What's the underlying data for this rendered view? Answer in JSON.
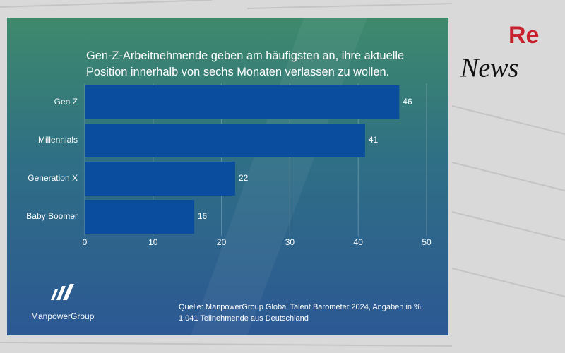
{
  "chart_data": {
    "type": "hbar",
    "title": "Gen-Z-Arbeitnehmende geben am häufigsten an, ihre aktuelle Position innerhalb von sechs Monaten verlassen zu wollen.",
    "categories": [
      "Gen Z",
      "Millennials",
      "Generation X",
      "Baby Boomer"
    ],
    "values": [
      46,
      41,
      22,
      16
    ],
    "color": "#0a4d9e",
    "xlim": [
      0,
      50
    ],
    "xticks": [
      0,
      10,
      20,
      30,
      40,
      50
    ],
    "grid": true,
    "source": [
      "Quelle: ManpowerGroup Global Talent Barometer 2024, Angaben in %,",
      "1.041 Teilnehmende aus Deutschland"
    ]
  },
  "branding": {
    "company": "ManpowerGroup",
    "re": "Re",
    "news": "News"
  }
}
